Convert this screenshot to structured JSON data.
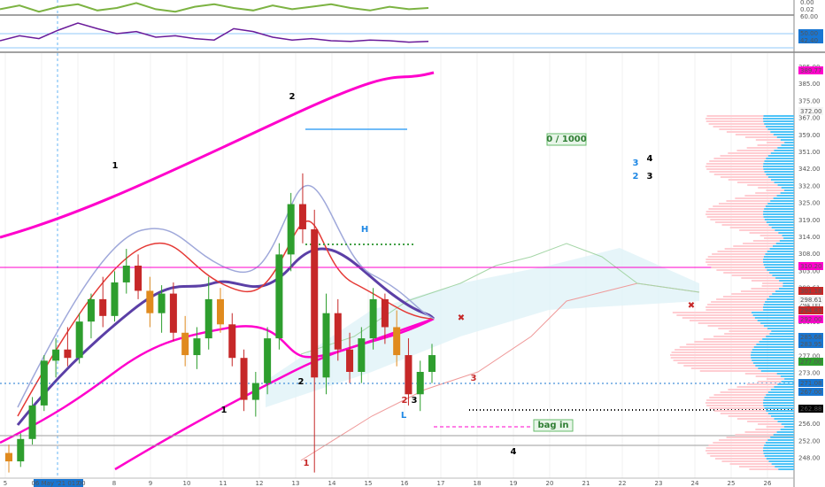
{
  "colors": {
    "up": "#2e9e2e",
    "down": "#c62828",
    "mid": "#e08a1e",
    "magenta": "#ff00cc",
    "purple": "#5b3fa6",
    "lilac": "#9fa8da",
    "cloud": "#e0f2f7",
    "grid": "#f0f0f0",
    "volprofile": "#ffcdd2",
    "volprofile_blue": "#4fc3f7"
  },
  "chart_data": [
    {
      "type": "line",
      "panel": "indicator-top",
      "series": [
        {
          "values": [
            0.4,
            0.7,
            0.2,
            0.6,
            0.8,
            0.3,
            0.5,
            0.9,
            0.4,
            0.2,
            0.6,
            0.8,
            0.5,
            0.3,
            0.7,
            0.4,
            0.6,
            0.8,
            0.5,
            0.3,
            0.6,
            0.4,
            0.5
          ]
        }
      ],
      "price_labels": [
        "0.00",
        "0.02",
        "60.00"
      ]
    },
    {
      "type": "line",
      "panel": "indicator-rsi",
      "series": [
        {
          "values": [
            45,
            52,
            48,
            60,
            70,
            62,
            55,
            58,
            50,
            52,
            48,
            46,
            62,
            58,
            50,
            46,
            48,
            45,
            44,
            46,
            45,
            43,
            44
          ]
        }
      ],
      "price_labels": [
        "50.00",
        "42.40"
      ]
    },
    {
      "type": "candlestick",
      "panel": "price",
      "x_ticks": [
        "5",
        "06 May '21  01:00",
        "7",
        "8",
        "9",
        "10",
        "11",
        "12",
        "13",
        "14",
        "15",
        "16",
        "17",
        "18",
        "19",
        "20",
        "21",
        "22",
        "23",
        "24",
        "25",
        "26"
      ],
      "y_ticks": [
        "395.00",
        "385.00",
        "375.00",
        "367.00",
        "359.00",
        "351.00",
        "342.00",
        "332.00",
        "325.00",
        "319.00",
        "314.00",
        "308.00",
        "303.00",
        "298.61",
        "294.00",
        "289.00",
        "283.00",
        "277.00",
        "273.00",
        "266.00",
        "262.00",
        "256.00",
        "252.00",
        "248.00"
      ],
      "price_labels": [
        {
          "text": "389.77",
          "color": "#ff00cc"
        },
        {
          "text": "High",
          "color": "#ffffff"
        },
        {
          "text": "372.00",
          "color": "#ffffff"
        },
        {
          "text": "310.20",
          "color": "#ff00cc"
        },
        {
          "text": "301.18",
          "color": "#c62828"
        },
        {
          "text": "Avg",
          "color": "#ffffff"
        },
        {
          "text": "298.61",
          "color": "#ffffff"
        },
        {
          "text": "294.83",
          "color": "#c62828"
        },
        {
          "text": "292.00",
          "color": "#ff00cc"
        },
        {
          "text": "285.68",
          "color": "#1976d2"
        },
        {
          "text": "283.95",
          "color": "#1976d2"
        },
        {
          "text": "277.00",
          "color": "#2e9e2e"
        },
        {
          "text": "271.08",
          "color": "#1976d2"
        },
        {
          "text": "267.00",
          "color": "#1976d2"
        },
        {
          "text": "262.88",
          "color": "#000000"
        }
      ],
      "ylim": [
        246,
        398
      ],
      "candles": [
        {
          "o": 255,
          "h": 258,
          "l": 248,
          "c": 252
        },
        {
          "o": 252,
          "h": 262,
          "l": 250,
          "c": 260
        },
        {
          "o": 260,
          "h": 275,
          "l": 258,
          "c": 272
        },
        {
          "o": 272,
          "h": 290,
          "l": 270,
          "c": 288
        },
        {
          "o": 288,
          "h": 296,
          "l": 282,
          "c": 292
        },
        {
          "o": 292,
          "h": 300,
          "l": 286,
          "c": 289
        },
        {
          "o": 289,
          "h": 305,
          "l": 287,
          "c": 302
        },
        {
          "o": 302,
          "h": 312,
          "l": 296,
          "c": 310
        },
        {
          "o": 310,
          "h": 318,
          "l": 300,
          "c": 304
        },
        {
          "o": 304,
          "h": 320,
          "l": 302,
          "c": 316
        },
        {
          "o": 316,
          "h": 328,
          "l": 312,
          "c": 322
        },
        {
          "o": 322,
          "h": 326,
          "l": 310,
          "c": 313
        },
        {
          "o": 313,
          "h": 318,
          "l": 300,
          "c": 305
        },
        {
          "o": 305,
          "h": 315,
          "l": 298,
          "c": 312
        },
        {
          "o": 312,
          "h": 316,
          "l": 295,
          "c": 298
        },
        {
          "o": 298,
          "h": 304,
          "l": 286,
          "c": 290
        },
        {
          "o": 290,
          "h": 300,
          "l": 285,
          "c": 296
        },
        {
          "o": 296,
          "h": 318,
          "l": 292,
          "c": 310
        },
        {
          "o": 310,
          "h": 314,
          "l": 298,
          "c": 301
        },
        {
          "o": 301,
          "h": 305,
          "l": 286,
          "c": 289
        },
        {
          "o": 289,
          "h": 292,
          "l": 270,
          "c": 274
        },
        {
          "o": 274,
          "h": 284,
          "l": 268,
          "c": 280
        },
        {
          "o": 280,
          "h": 300,
          "l": 276,
          "c": 296
        },
        {
          "o": 296,
          "h": 330,
          "l": 292,
          "c": 326
        },
        {
          "o": 326,
          "h": 348,
          "l": 320,
          "c": 344
        },
        {
          "o": 344,
          "h": 355,
          "l": 330,
          "c": 335
        },
        {
          "o": 335,
          "h": 342,
          "l": 248,
          "c": 282
        },
        {
          "o": 282,
          "h": 312,
          "l": 276,
          "c": 305
        },
        {
          "o": 305,
          "h": 310,
          "l": 288,
          "c": 292
        },
        {
          "o": 292,
          "h": 298,
          "l": 280,
          "c": 284
        },
        {
          "o": 284,
          "h": 300,
          "l": 280,
          "c": 296
        },
        {
          "o": 296,
          "h": 314,
          "l": 292,
          "c": 310
        },
        {
          "o": 310,
          "h": 312,
          "l": 294,
          "c": 300
        },
        {
          "o": 300,
          "h": 306,
          "l": 286,
          "c": 290
        },
        {
          "o": 290,
          "h": 296,
          "l": 272,
          "c": 276
        },
        {
          "o": 276,
          "h": 288,
          "l": 270,
          "c": 284
        },
        {
          "o": 284,
          "h": 294,
          "l": 280,
          "c": 290
        }
      ],
      "annotations": [
        {
          "text": "1",
          "color": "#000000"
        },
        {
          "text": "2",
          "color": "#000000"
        },
        {
          "text": "1",
          "color": "#000000"
        },
        {
          "text": "2",
          "color": "#000000"
        },
        {
          "text": "1",
          "color": "#c62828"
        },
        {
          "text": "H",
          "color": "#1e88e5"
        },
        {
          "text": "2",
          "color": "#c62828"
        },
        {
          "text": "3",
          "color": "#000000"
        },
        {
          "text": "L",
          "color": "#1e88e5"
        },
        {
          "text": "3",
          "color": "#c62828"
        },
        {
          "text": "4",
          "color": "#000000"
        },
        {
          "text": "3",
          "color": "#1e88e5"
        },
        {
          "text": "4",
          "color": "#000000"
        },
        {
          "text": "2",
          "color": "#1e88e5"
        },
        {
          "text": "3",
          "color": "#000000"
        },
        {
          "text": "0 / 1000",
          "color": "#2e7d32"
        },
        {
          "text": "bag  in",
          "color": "#2e7d32"
        }
      ]
    }
  ]
}
